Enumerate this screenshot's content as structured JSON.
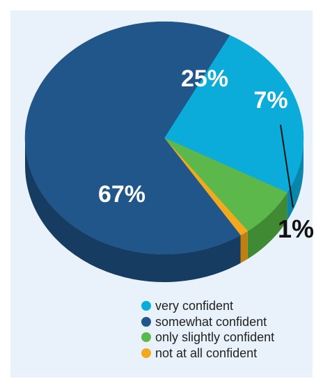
{
  "chart_data": {
    "type": "pie",
    "title": "",
    "series": [
      {
        "name": "very confident",
        "value": 25,
        "label": "25%",
        "color": "#0bacd9",
        "side": "#0a86ab"
      },
      {
        "name": "only slightly confident",
        "value": 7,
        "label": "7%",
        "color": "#5cb84a",
        "side": "#3f8a32"
      },
      {
        "name": "not at all confident",
        "value": 1,
        "label": "1%",
        "color": "#f2a91e",
        "side": "#c07f10"
      },
      {
        "name": "somewhat confident",
        "value": 67,
        "label": "67%",
        "color": "#21568b",
        "side": "#163c62"
      }
    ],
    "legend_position": "bottom-right",
    "three_d": true
  }
}
